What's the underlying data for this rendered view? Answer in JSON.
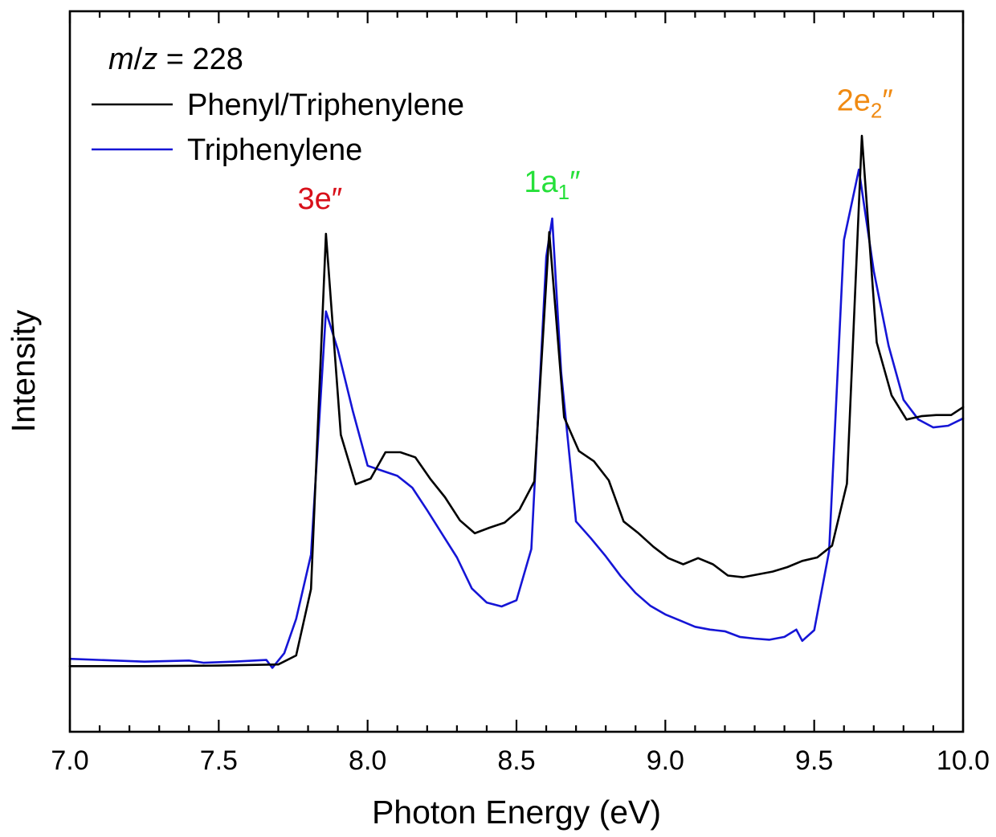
{
  "chart_data": {
    "type": "line",
    "xlabel": "Photon Energy (eV)",
    "ylabel": "Intensity",
    "xlim": [
      7.0,
      10.0
    ],
    "ylim": [
      0,
      1.0
    ],
    "x_ticks": [
      "7.0",
      "7.5",
      "8.0",
      "8.5",
      "9.0",
      "9.5",
      "10.0"
    ],
    "y_ticks_labeled": false,
    "legend": {
      "placement": "top-left",
      "title": {
        "italic_m": "m",
        "slash": "/",
        "italic_z": "z",
        "rest": " = 228"
      }
    },
    "series": [
      {
        "name": "Phenyl/Triphenylene",
        "color": "#000000",
        "points": [
          [
            7.0,
            0.058
          ],
          [
            7.25,
            0.058
          ],
          [
            7.5,
            0.059
          ],
          [
            7.7,
            0.061
          ],
          [
            7.76,
            0.077
          ],
          [
            7.81,
            0.195
          ],
          [
            7.86,
            0.826
          ],
          [
            7.91,
            0.469
          ],
          [
            7.96,
            0.381
          ],
          [
            8.01,
            0.391
          ],
          [
            8.06,
            0.438
          ],
          [
            8.11,
            0.438
          ],
          [
            8.16,
            0.429
          ],
          [
            8.21,
            0.391
          ],
          [
            8.26,
            0.358
          ],
          [
            8.31,
            0.317
          ],
          [
            8.36,
            0.294
          ],
          [
            8.41,
            0.304
          ],
          [
            8.46,
            0.313
          ],
          [
            8.51,
            0.336
          ],
          [
            8.56,
            0.386
          ],
          [
            8.61,
            0.829
          ],
          [
            8.66,
            0.5
          ],
          [
            8.71,
            0.44
          ],
          [
            8.76,
            0.422
          ],
          [
            8.81,
            0.388
          ],
          [
            8.86,
            0.315
          ],
          [
            8.91,
            0.294
          ],
          [
            8.96,
            0.27
          ],
          [
            9.01,
            0.25
          ],
          [
            9.06,
            0.239
          ],
          [
            9.11,
            0.25
          ],
          [
            9.16,
            0.239
          ],
          [
            9.21,
            0.219
          ],
          [
            9.26,
            0.216
          ],
          [
            9.31,
            0.221
          ],
          [
            9.36,
            0.226
          ],
          [
            9.41,
            0.234
          ],
          [
            9.46,
            0.245
          ],
          [
            9.51,
            0.251
          ],
          [
            9.56,
            0.272
          ],
          [
            9.61,
            0.382
          ],
          [
            9.66,
            1.0
          ],
          [
            9.71,
            0.633
          ],
          [
            9.76,
            0.539
          ],
          [
            9.81,
            0.496
          ],
          [
            9.86,
            0.502
          ],
          [
            9.91,
            0.504
          ],
          [
            9.96,
            0.504
          ],
          [
            10.0,
            0.518
          ]
        ]
      },
      {
        "name": "Triphenylene",
        "color": "#1515d6",
        "points": [
          [
            7.0,
            0.071
          ],
          [
            7.25,
            0.066
          ],
          [
            7.4,
            0.068
          ],
          [
            7.45,
            0.064
          ],
          [
            7.55,
            0.066
          ],
          [
            7.66,
            0.069
          ],
          [
            7.68,
            0.055
          ],
          [
            7.72,
            0.081
          ],
          [
            7.76,
            0.142
          ],
          [
            7.81,
            0.256
          ],
          [
            7.86,
            0.688
          ],
          [
            7.9,
            0.62
          ],
          [
            7.95,
            0.512
          ],
          [
            8.0,
            0.414
          ],
          [
            8.05,
            0.405
          ],
          [
            8.1,
            0.396
          ],
          [
            8.15,
            0.375
          ],
          [
            8.2,
            0.335
          ],
          [
            8.25,
            0.293
          ],
          [
            8.3,
            0.251
          ],
          [
            8.35,
            0.196
          ],
          [
            8.4,
            0.171
          ],
          [
            8.45,
            0.164
          ],
          [
            8.5,
            0.175
          ],
          [
            8.55,
            0.266
          ],
          [
            8.6,
            0.785
          ],
          [
            8.62,
            0.853
          ],
          [
            8.65,
            0.58
          ],
          [
            8.7,
            0.315
          ],
          [
            8.75,
            0.285
          ],
          [
            8.8,
            0.253
          ],
          [
            8.85,
            0.218
          ],
          [
            8.9,
            0.188
          ],
          [
            8.95,
            0.165
          ],
          [
            9.0,
            0.15
          ],
          [
            9.05,
            0.139
          ],
          [
            9.1,
            0.128
          ],
          [
            9.15,
            0.123
          ],
          [
            9.2,
            0.12
          ],
          [
            9.25,
            0.11
          ],
          [
            9.3,
            0.107
          ],
          [
            9.35,
            0.105
          ],
          [
            9.4,
            0.11
          ],
          [
            9.44,
            0.123
          ],
          [
            9.46,
            0.103
          ],
          [
            9.5,
            0.122
          ],
          [
            9.55,
            0.262
          ],
          [
            9.6,
            0.815
          ],
          [
            9.65,
            0.94
          ],
          [
            9.7,
            0.76
          ],
          [
            9.75,
            0.627
          ],
          [
            9.8,
            0.531
          ],
          [
            9.85,
            0.496
          ],
          [
            9.9,
            0.482
          ],
          [
            9.95,
            0.485
          ],
          [
            10.0,
            0.498
          ]
        ]
      }
    ],
    "annotations": [
      {
        "x": 7.84,
        "y": 0.87,
        "color": "#d8101a",
        "base": "3e″",
        "sub": ""
      },
      {
        "x": 8.62,
        "y": 0.9,
        "color": "#26e03a",
        "base": "1a",
        "sub": "1",
        "suffix": "″"
      },
      {
        "x": 9.67,
        "y": 1.045,
        "color": "#f08a12",
        "base": "2e",
        "sub": "2",
        "suffix": "″"
      }
    ]
  }
}
